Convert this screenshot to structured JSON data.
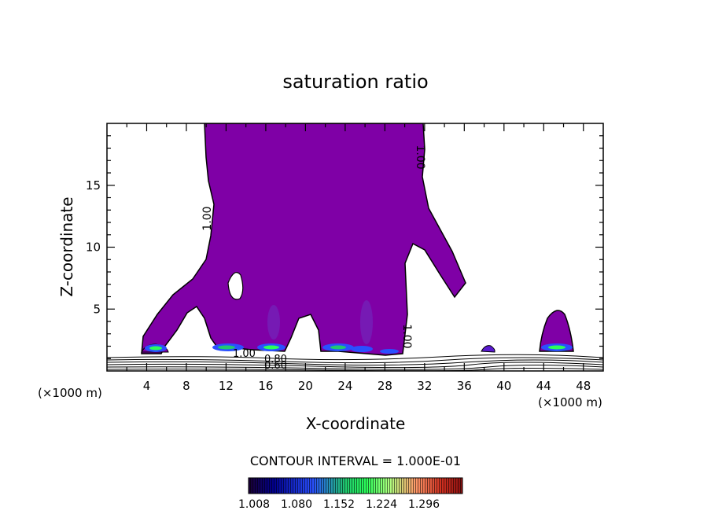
{
  "chart_data": {
    "type": "contour",
    "title": "saturation ratio",
    "xlabel": "X-coordinate",
    "ylabel": "Z-coordinate",
    "x_unit": "(×1000 m)",
    "x_unit_right": "(×1000 m)",
    "xlim": [
      0,
      50
    ],
    "ylim": [
      0,
      20
    ],
    "x_ticks": [
      4,
      8,
      12,
      16,
      20,
      24,
      28,
      32,
      36,
      40,
      44,
      48
    ],
    "y_ticks": [
      5,
      10,
      15
    ],
    "contour_interval_text": "CONTOUR INTERVAL = 1.000E-01",
    "contour_labels": [
      "1.00",
      "1.00",
      "1.00",
      "1.00",
      "0.80",
      "0.60"
    ],
    "colorbar": {
      "tick_labels": [
        "1.008",
        "1.080",
        "1.152",
        "1.224",
        "1.296"
      ],
      "range": [
        1.0,
        1.33
      ],
      "colors": [
        "#1a0033",
        "#000090",
        "#2a50ff",
        "#20c870",
        "#2aff5a",
        "#b0ff80",
        "#ff9a6a",
        "#d03020",
        "#8a1010"
      ]
    },
    "cloud_fill_color": "#7f00a6"
  }
}
